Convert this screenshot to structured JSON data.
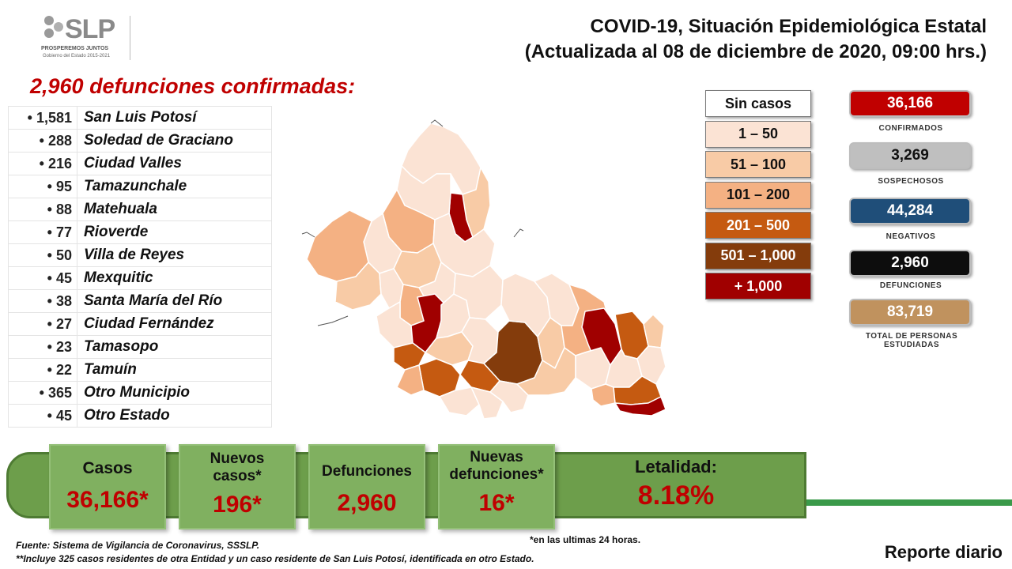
{
  "header": {
    "logo_text": "SLP",
    "logo_tagline": "PROSPEREMOS JUNTOS",
    "logo_subtitle": "Gobierno del Estado 2015-2021",
    "title_line1": "COVID-19, Situación Epidemiológica Estatal",
    "title_line2": "(Actualizada al 08 de diciembre de 2020, 09:00 hrs.)"
  },
  "deaths_title": "2,960 defunciones confirmadas:",
  "municipalities": [
    {
      "count": "• 1,581",
      "name": "San Luis Potosí"
    },
    {
      "count": "• 288",
      "name": "Soledad de Graciano"
    },
    {
      "count": "• 216",
      "name": "Ciudad Valles"
    },
    {
      "count": "• 95",
      "name": "Tamazunchale"
    },
    {
      "count": "• 88",
      "name": "Matehuala"
    },
    {
      "count": "• 77",
      "name": "Rioverde"
    },
    {
      "count": "• 50",
      "name": "Villa de Reyes"
    },
    {
      "count": "• 45",
      "name": "Mexquitic"
    },
    {
      "count": "• 38",
      "name": "Santa María del Río"
    },
    {
      "count": "• 27",
      "name": "Ciudad Fernández"
    },
    {
      "count": "• 23",
      "name": "Tamasopo"
    },
    {
      "count": "• 22",
      "name": "Tamuín"
    },
    {
      "count": "• 365",
      "name": "Otro Municipio"
    },
    {
      "count": "• 45",
      "name": "Otro Estado"
    }
  ],
  "legend": [
    {
      "label": "Sin casos",
      "color": "#ffffff",
      "text_color": "#111111"
    },
    {
      "label": "1 – 50",
      "color": "#fbe3d4",
      "text_color": "#111111"
    },
    {
      "label": "51 – 100",
      "color": "#f8cba6",
      "text_color": "#111111"
    },
    {
      "label": "101 – 200",
      "color": "#f4b183",
      "text_color": "#111111"
    },
    {
      "label": "201 – 500",
      "color": "#c55a11",
      "text_color": "#ffffff"
    },
    {
      "label": "501 – 1,000",
      "color": "#843c0c",
      "text_color": "#ffffff"
    },
    {
      "label": "+ 1,000",
      "color": "#a00000",
      "text_color": "#ffffff"
    }
  ],
  "stats": [
    {
      "value": "36,166",
      "label": "CONFIRMADOS",
      "color": "#c00000",
      "text_color": "#ffffff"
    },
    {
      "value": "3,269",
      "label": "SOSPECHOSOS",
      "color": "#bfbfbf",
      "text_color": "#111111"
    },
    {
      "value": "44,284",
      "label": "NEGATIVOS",
      "color": "#1f4e79",
      "text_color": "#ffffff"
    },
    {
      "value": "2,960",
      "label": "DEFUNCIONES",
      "color": "#0d0d0d",
      "text_color": "#ffffff"
    },
    {
      "value": "83,719",
      "label": "TOTAL DE PERSONAS ESTUDIADAS",
      "color": "#c0925e",
      "text_color": "#ffffff"
    }
  ],
  "summary": {
    "cases_label": "Casos",
    "cases_value": "36,166*",
    "new_cases_label": "Nuevos casos*",
    "new_cases_value": "196*",
    "deaths_label": "Defunciones",
    "deaths_value": "2,960",
    "new_deaths_label": "Nuevas defunciones*",
    "new_deaths_value": "16*",
    "lethality_label": "Letalidad:",
    "lethality_value": "8.18%"
  },
  "footer": {
    "note_24h": "*en las ultimas 24 horas.",
    "source": "Fuente: Sistema de Vigilancia de Coronavirus, SSSLP.",
    "footnote": "**Incluye 325 casos residentes de otra Entidad y un caso residente de San Luis Potosí, identificada en otro Estado.",
    "report": "Reporte diario"
  }
}
